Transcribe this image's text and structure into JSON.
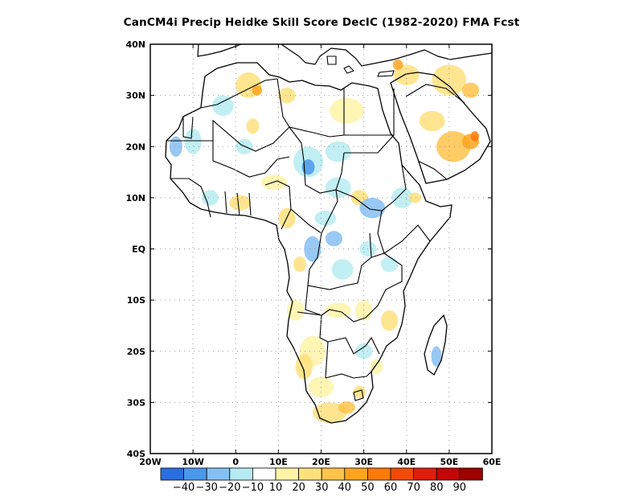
{
  "title": "CanCM4i Precip Heidke Skill Score DecIC (1982-2020) FMA Fcst",
  "map": {
    "region": "Africa",
    "lon_range": [
      -20,
      60
    ],
    "lat_range": [
      -40,
      40
    ],
    "grid": "dotted",
    "lon_ticks": [
      {
        "value": -20,
        "label": "20W"
      },
      {
        "value": -10,
        "label": "10W"
      },
      {
        "value": 0,
        "label": "0"
      },
      {
        "value": 10,
        "label": "10E"
      },
      {
        "value": 20,
        "label": "20E"
      },
      {
        "value": 30,
        "label": "30E"
      },
      {
        "value": 40,
        "label": "40E"
      },
      {
        "value": 50,
        "label": "50E"
      },
      {
        "value": 60,
        "label": "60E"
      }
    ],
    "lat_ticks": [
      {
        "value": 40,
        "label": "40N"
      },
      {
        "value": 30,
        "label": "30N"
      },
      {
        "value": 20,
        "label": "20N"
      },
      {
        "value": 10,
        "label": "10N"
      },
      {
        "value": 0,
        "label": "EQ"
      },
      {
        "value": -10,
        "label": "10S"
      },
      {
        "value": -20,
        "label": "20S"
      },
      {
        "value": -30,
        "label": "30S"
      },
      {
        "value": -40,
        "label": "40S"
      }
    ]
  },
  "colorbar": {
    "colors": [
      "#2a6fe0",
      "#4a98ec",
      "#86c0f2",
      "#b6ecf1",
      "#ffffff",
      "#fff3a8",
      "#ffe17c",
      "#ffc34a",
      "#ffa41e",
      "#ff7a08",
      "#f24b08",
      "#e01e0e",
      "#c40606",
      "#9e0000"
    ],
    "labels": [
      "-40",
      "-30",
      "-20",
      "-10",
      "10",
      "20",
      "30",
      "40",
      "50",
      "60",
      "70",
      "80",
      "90"
    ]
  },
  "skill_patches": [
    {
      "lon": 3,
      "lat": 32,
      "rx": 3,
      "ry": 2.5,
      "level": 20
    },
    {
      "lon": 5,
      "lat": 31,
      "rx": 1.2,
      "ry": 1,
      "level": 40
    },
    {
      "lon": 12,
      "lat": 30,
      "rx": 2,
      "ry": 1.5,
      "level": 20
    },
    {
      "lon": 26,
      "lat": 27,
      "rx": 4,
      "ry": 2.5,
      "level": 10
    },
    {
      "lon": 40,
      "lat": 34,
      "rx": 3,
      "ry": 2,
      "level": 20
    },
    {
      "lon": 38,
      "lat": 36,
      "rx": 1.2,
      "ry": 1,
      "level": 40
    },
    {
      "lon": 50,
      "lat": 33,
      "rx": 4,
      "ry": 3,
      "level": 20
    },
    {
      "lon": 55,
      "lat": 31,
      "rx": 2,
      "ry": 1.5,
      "level": 30
    },
    {
      "lon": 51,
      "lat": 20,
      "rx": 4,
      "ry": 3,
      "level": 30
    },
    {
      "lon": 55,
      "lat": 21,
      "rx": 2,
      "ry": 1.5,
      "level": 40
    },
    {
      "lon": 56,
      "lat": 22,
      "rx": 1,
      "ry": 1,
      "level": 50
    },
    {
      "lon": 46,
      "lat": 25,
      "rx": 3,
      "ry": 2,
      "level": 20
    },
    {
      "lon": -10,
      "lat": 21,
      "rx": 2,
      "ry": 2.5,
      "level": -10
    },
    {
      "lon": -14,
      "lat": 20,
      "rx": 1.5,
      "ry": 2,
      "level": -20
    },
    {
      "lon": -3,
      "lat": 28,
      "rx": 2.5,
      "ry": 2,
      "level": -10
    },
    {
      "lon": 2,
      "lat": 20,
      "rx": 2,
      "ry": 1.5,
      "level": -10
    },
    {
      "lon": 4,
      "lat": 24,
      "rx": 1.5,
      "ry": 1.5,
      "level": 20
    },
    {
      "lon": 9,
      "lat": 13,
      "rx": 3,
      "ry": 1.5,
      "level": 10
    },
    {
      "lon": 17,
      "lat": 17,
      "rx": 3.5,
      "ry": 3,
      "level": -10
    },
    {
      "lon": 17,
      "lat": 16,
      "rx": 1.5,
      "ry": 1.5,
      "level": -30
    },
    {
      "lon": 24,
      "lat": 19,
      "rx": 3,
      "ry": 2,
      "level": -10
    },
    {
      "lon": 24,
      "lat": 12,
      "rx": 3,
      "ry": 2,
      "level": -10
    },
    {
      "lon": 29,
      "lat": 10,
      "rx": 2,
      "ry": 1.5,
      "level": 20
    },
    {
      "lon": 32,
      "lat": 8,
      "rx": 3,
      "ry": 2,
      "level": -20
    },
    {
      "lon": 39,
      "lat": 10,
      "rx": 2.5,
      "ry": 2,
      "level": -10
    },
    {
      "lon": 42,
      "lat": 10,
      "rx": 1.5,
      "ry": 1,
      "level": 20
    },
    {
      "lon": -6,
      "lat": 10,
      "rx": 2,
      "ry": 1.5,
      "level": -10
    },
    {
      "lon": 1,
      "lat": 9,
      "rx": 2.5,
      "ry": 1.5,
      "level": 20
    },
    {
      "lon": 12,
      "lat": 6,
      "rx": 2,
      "ry": 2,
      "level": 20
    },
    {
      "lon": 21,
      "lat": 6,
      "rx": 2.5,
      "ry": 1.5,
      "level": -10
    },
    {
      "lon": 18,
      "lat": 0,
      "rx": 2,
      "ry": 2.5,
      "level": -20
    },
    {
      "lon": 23,
      "lat": 2,
      "rx": 2,
      "ry": 1.5,
      "level": -20
    },
    {
      "lon": 25,
      "lat": -4,
      "rx": 2.5,
      "ry": 2,
      "level": -10
    },
    {
      "lon": 31,
      "lat": 0,
      "rx": 2,
      "ry": 1.5,
      "level": -10
    },
    {
      "lon": 36,
      "lat": -3,
      "rx": 2,
      "ry": 1.5,
      "level": -10
    },
    {
      "lon": 15,
      "lat": -3,
      "rx": 1.5,
      "ry": 1.5,
      "level": 20
    },
    {
      "lon": 14,
      "lat": -12,
      "rx": 2,
      "ry": 2,
      "level": 10
    },
    {
      "lon": 24,
      "lat": -12,
      "rx": 3,
      "ry": 1.5,
      "level": 10
    },
    {
      "lon": 30,
      "lat": -12,
      "rx": 2,
      "ry": 2,
      "level": 10
    },
    {
      "lon": 36,
      "lat": -14,
      "rx": 2,
      "ry": 2,
      "level": 20
    },
    {
      "lon": 18,
      "lat": -20,
      "rx": 3,
      "ry": 3,
      "level": 10
    },
    {
      "lon": 16,
      "lat": -23,
      "rx": 2,
      "ry": 2.5,
      "level": 20
    },
    {
      "lon": 30,
      "lat": -20,
      "rx": 2,
      "ry": 1.5,
      "level": -10
    },
    {
      "lon": 33,
      "lat": -23,
      "rx": 1.5,
      "ry": 1.5,
      "level": 10
    },
    {
      "lon": 47,
      "lat": -21,
      "rx": 1.2,
      "ry": 2,
      "level": -20
    },
    {
      "lon": 20,
      "lat": -27,
      "rx": 3,
      "ry": 2,
      "level": 10
    },
    {
      "lon": 22,
      "lat": -32,
      "rx": 4,
      "ry": 2,
      "level": 20
    },
    {
      "lon": 26,
      "lat": -31,
      "rx": 2,
      "ry": 1.2,
      "level": 30
    },
    {
      "lon": 29,
      "lat": -28,
      "rx": 1.5,
      "ry": 1.2,
      "level": 20
    }
  ]
}
